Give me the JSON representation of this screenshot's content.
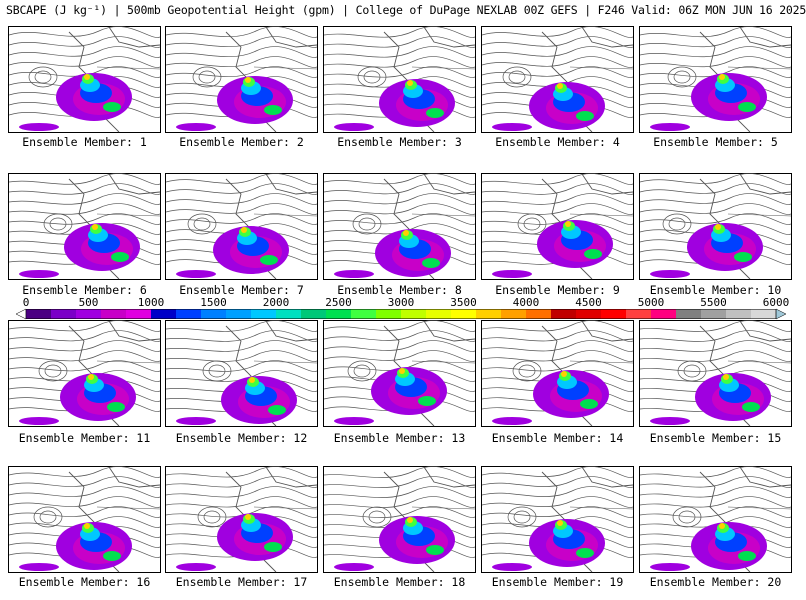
{
  "title": "SBCAPE (J kg⁻¹) | 500mb Geopotential Height (gpm) | College of DuPage NEXLAB 00Z GEFS | F246 Valid: 06Z MON JUN 16 2025",
  "caption_prefix": "Ensemble Member: ",
  "members": [
    "1",
    "2",
    "3",
    "4",
    "5",
    "6",
    "7",
    "8",
    "9",
    "10",
    "11",
    "12",
    "13",
    "14",
    "15",
    "16",
    "17",
    "18",
    "19",
    "20"
  ],
  "colorbar": {
    "labels": [
      "0",
      "500",
      "1000",
      "1500",
      "2000",
      "2500",
      "3000",
      "3500",
      "4000",
      "4500",
      "5000",
      "5500",
      "6000"
    ],
    "colors": [
      "#ffffff",
      "#4b0082",
      "#7b00c8",
      "#a000e0",
      "#c800c8",
      "#e000e0",
      "#0000c8",
      "#0040ff",
      "#0080ff",
      "#00a0ff",
      "#00c8ff",
      "#00e0c0",
      "#00c878",
      "#00e050",
      "#40ff40",
      "#80ff00",
      "#c0ff00",
      "#e8ff00",
      "#ffff00",
      "#ffd000",
      "#ffa000",
      "#ff7000",
      "#c00000",
      "#e00000",
      "#ff0000",
      "#ff4040",
      "#ff0080",
      "#808080",
      "#a0a0a0",
      "#c0c0c0",
      "#d8d8d8",
      "#a0c8d8"
    ]
  }
}
